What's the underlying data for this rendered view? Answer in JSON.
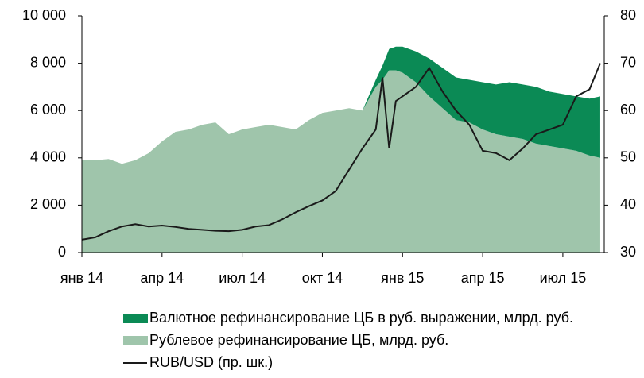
{
  "chart_data": {
    "type": "area-line",
    "x": [
      0,
      0.5,
      1,
      1.5,
      2,
      2.5,
      3,
      3.5,
      4,
      4.5,
      5,
      5.5,
      6,
      6.5,
      7,
      7.5,
      8,
      8.5,
      9,
      9.5,
      10,
      10.5,
      11,
      11.25,
      11.5,
      11.75,
      12,
      12.5,
      13,
      13.5,
      14,
      14.5,
      15,
      15.5,
      16,
      16.5,
      17,
      17.5,
      18,
      18.5,
      19,
      19.4
    ],
    "series": [
      {
        "name": "Рублевое рефинансирование ЦБ, млрд. руб.",
        "color": "#9fc5ab",
        "values": [
          3900,
          3900,
          3950,
          3750,
          3900,
          4200,
          4700,
          5100,
          5200,
          5400,
          5500,
          5000,
          5200,
          5300,
          5400,
          5300,
          5200,
          5600,
          5900,
          6000,
          6100,
          6000,
          7000,
          7300,
          7700,
          7700,
          7600,
          7200,
          6600,
          6100,
          5600,
          5500,
          5200,
          5000,
          4900,
          4800,
          4600,
          4500,
          4400,
          4300,
          4100,
          4000
        ]
      },
      {
        "name": "Валютное рефинансирование ЦБ в руб. выражении, млрд. руб.",
        "color": "#0b8a55",
        "values": [
          0,
          0,
          0,
          0,
          0,
          0,
          0,
          0,
          0,
          0,
          0,
          0,
          0,
          0,
          0,
          0,
          0,
          0,
          0,
          0,
          0,
          0,
          300,
          600,
          900,
          1000,
          1100,
          1300,
          1600,
          1700,
          1800,
          1800,
          2000,
          2100,
          2300,
          2300,
          2400,
          2300,
          2300,
          2300,
          2400,
          2600
        ]
      },
      {
        "name": "RUB/USD (пр. шк.)",
        "color": "#1a1a1a",
        "axis": "y2",
        "values": [
          32.7,
          33.2,
          34.5,
          35.5,
          36,
          35.5,
          35.7,
          35.4,
          35,
          34.8,
          34.6,
          34.5,
          34.8,
          35.5,
          35.8,
          37,
          38.5,
          39.8,
          41,
          43,
          47.5,
          52,
          56,
          67,
          52,
          62,
          63,
          65,
          69,
          64,
          60,
          57,
          51.5,
          51,
          49.5,
          52,
          55,
          56,
          57,
          63,
          64.5,
          70
        ]
      }
    ],
    "xlim": [
      0,
      19.55
    ],
    "xticks": [
      {
        "value": 0,
        "label": "янв 14"
      },
      {
        "value": 3,
        "label": "апр 14"
      },
      {
        "value": 6,
        "label": "июл 14"
      },
      {
        "value": 9,
        "label": "окт 14"
      },
      {
        "value": 12,
        "label": "янв 15"
      },
      {
        "value": 15,
        "label": "апр 15"
      },
      {
        "value": 18,
        "label": "июл 15"
      }
    ],
    "ylim": [
      0,
      10000
    ],
    "yticks": [
      0,
      {
        "value": 2000,
        "label": "2 000"
      },
      {
        "value": 4000,
        "label": "4 000"
      },
      {
        "value": 6000,
        "label": "6 000"
      },
      {
        "value": 8000,
        "label": "8 000"
      },
      {
        "value": 10000,
        "label": "10 000"
      }
    ],
    "y2lim": [
      30,
      80
    ],
    "y2ticks": [
      30,
      40,
      50,
      60,
      70,
      80
    ],
    "legend": "bottom"
  }
}
